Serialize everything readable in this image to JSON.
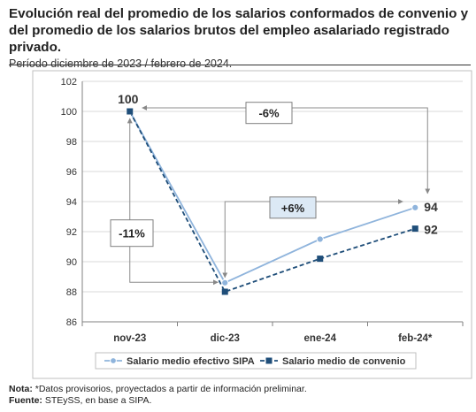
{
  "header": {
    "title": "Evolución real del promedio de los salarios conformados de convenio y del promedio de los salarios brutos del empleo asalariado registrado privado.",
    "subtitle": "Período diciembre de 2023 / febrero de 2024."
  },
  "chart_data": {
    "type": "line",
    "categories": [
      "nov-23",
      "dic-23",
      "ene-24",
      "feb-24*"
    ],
    "series": [
      {
        "name": "Salario medio efectivo SIPA",
        "values": [
          100,
          88.6,
          91.5,
          93.6
        ],
        "color": "#8fb4dc",
        "marker": "circle",
        "dash": "solid"
      },
      {
        "name": "Salario medio de convenio",
        "values": [
          100,
          88.0,
          90.2,
          92.2
        ],
        "color": "#1f4e79",
        "marker": "square",
        "dash": "dashed"
      }
    ],
    "title": "",
    "xlabel": "",
    "ylabel": "",
    "ylim": [
      86,
      102
    ],
    "yticks": [
      "86",
      "88",
      "90",
      "92",
      "94",
      "96",
      "98",
      "100",
      "102"
    ],
    "grid": true,
    "legend_position": "bottom",
    "data_labels": [
      {
        "text": "100",
        "category": "nov-23",
        "value": 100
      },
      {
        "text": "94",
        "category": "feb-24*",
        "value": 93.6
      },
      {
        "text": "92",
        "category": "feb-24*",
        "value": 92.2
      }
    ],
    "annotations": [
      "-6%",
      "+6%",
      "-11%"
    ]
  },
  "notes": {
    "nota_label": "Nota:",
    "nota_text": " *Datos provisorios, proyectados a partir de información preliminar.",
    "fuente_label": "Fuente:",
    "fuente_text": " STEySS, en base a SIPA."
  }
}
